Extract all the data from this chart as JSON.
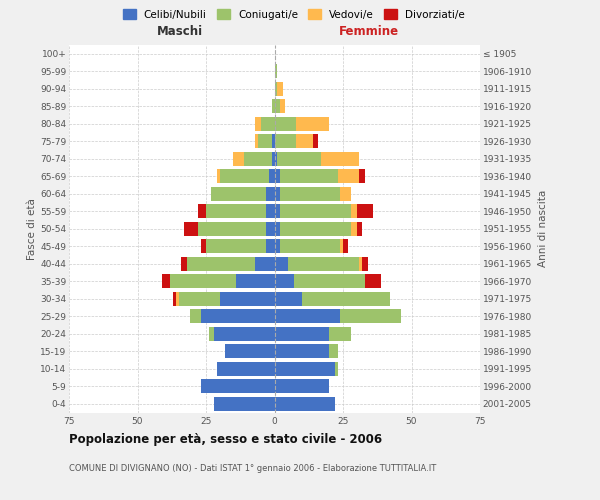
{
  "age_groups": [
    "0-4",
    "5-9",
    "10-14",
    "15-19",
    "20-24",
    "25-29",
    "30-34",
    "35-39",
    "40-44",
    "45-49",
    "50-54",
    "55-59",
    "60-64",
    "65-69",
    "70-74",
    "75-79",
    "80-84",
    "85-89",
    "90-94",
    "95-99",
    "100+"
  ],
  "birth_years": [
    "2001-2005",
    "1996-2000",
    "1991-1995",
    "1986-1990",
    "1981-1985",
    "1976-1980",
    "1971-1975",
    "1966-1970",
    "1961-1965",
    "1956-1960",
    "1951-1955",
    "1946-1950",
    "1941-1945",
    "1936-1940",
    "1931-1935",
    "1926-1930",
    "1921-1925",
    "1916-1920",
    "1911-1915",
    "1906-1910",
    "≤ 1905"
  ],
  "maschi": {
    "celibi": [
      22,
      27,
      21,
      18,
      22,
      27,
      20,
      14,
      7,
      3,
      3,
      3,
      3,
      2,
      1,
      1,
      0,
      0,
      0,
      0,
      0
    ],
    "coniugati": [
      0,
      0,
      0,
      0,
      2,
      4,
      15,
      24,
      25,
      22,
      25,
      22,
      20,
      18,
      10,
      5,
      5,
      1,
      0,
      0,
      0
    ],
    "vedovi": [
      0,
      0,
      0,
      0,
      0,
      0,
      1,
      0,
      0,
      0,
      0,
      0,
      0,
      1,
      4,
      1,
      2,
      0,
      0,
      0,
      0
    ],
    "divorziati": [
      0,
      0,
      0,
      0,
      0,
      0,
      1,
      3,
      2,
      2,
      5,
      3,
      0,
      0,
      0,
      0,
      0,
      0,
      0,
      0,
      0
    ]
  },
  "femmine": {
    "nubili": [
      22,
      20,
      22,
      20,
      20,
      24,
      10,
      7,
      5,
      2,
      2,
      2,
      2,
      2,
      1,
      0,
      0,
      0,
      0,
      0,
      0
    ],
    "coniugate": [
      0,
      0,
      1,
      3,
      8,
      22,
      32,
      26,
      26,
      22,
      26,
      26,
      22,
      21,
      16,
      8,
      8,
      2,
      1,
      1,
      0
    ],
    "vedove": [
      0,
      0,
      0,
      0,
      0,
      0,
      0,
      0,
      1,
      1,
      2,
      2,
      4,
      8,
      14,
      6,
      12,
      2,
      2,
      0,
      0
    ],
    "divorziate": [
      0,
      0,
      0,
      0,
      0,
      0,
      0,
      6,
      2,
      2,
      2,
      6,
      0,
      2,
      0,
      2,
      0,
      0,
      0,
      0,
      0
    ]
  },
  "colors": {
    "celibi": "#4472C4",
    "coniugati": "#9DC36B",
    "vedovi": "#FFB94E",
    "divorziati": "#CC1111"
  },
  "title": "Popolazione per età, sesso e stato civile - 2006",
  "subtitle": "COMUNE DI DIVIGNANO (NO) - Dati ISTAT 1° gennaio 2006 - Elaborazione TUTTITALIA.IT",
  "xlabel_left": "Maschi",
  "xlabel_right": "Femmine",
  "ylabel_left": "Fasce di età",
  "ylabel_right": "Anni di nascita",
  "xlim": 75,
  "bg_color": "#f0f0f0",
  "plot_bg": "#ffffff"
}
